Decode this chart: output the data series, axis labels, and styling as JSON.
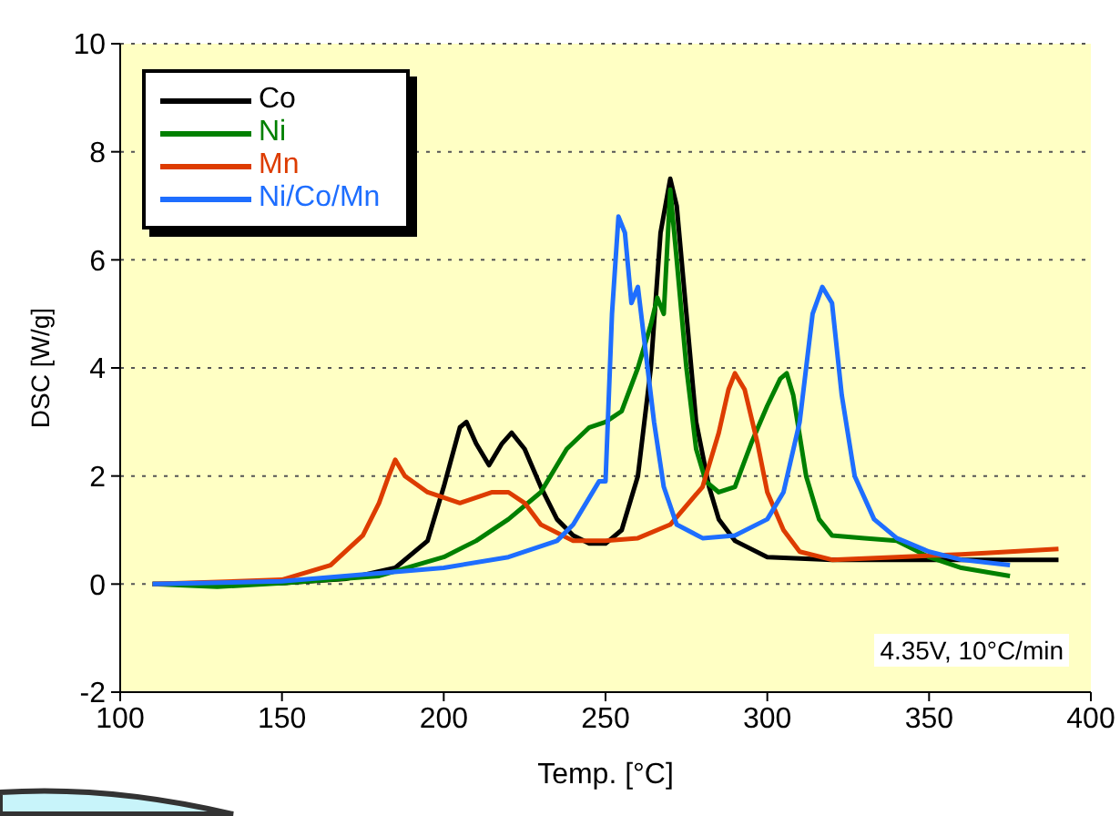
{
  "chart_data": {
    "type": "line",
    "xlabel": "Temp. [°C]",
    "ylabel": "DSC [W/g]",
    "xlim": [
      100,
      400
    ],
    "xticks": [
      100,
      150,
      200,
      250,
      300,
      350,
      400
    ],
    "ylim": [
      -2,
      10
    ],
    "yticks": [
      -2,
      0,
      2,
      4,
      6,
      8,
      10
    ],
    "grid": "y",
    "legend": "top left",
    "marker": "none",
    "line_style": "solid",
    "annotations": [
      "4.35V, 10°C/min"
    ],
    "series": [
      {
        "name": "Co",
        "color": "#000000",
        "x": [
          110,
          150,
          170,
          185,
          195,
          200,
          205,
          207,
          210,
          214,
          218,
          221,
          225,
          230,
          235,
          240,
          245,
          250,
          255,
          260,
          264,
          267,
          270,
          272,
          275,
          278,
          282,
          285,
          290,
          300,
          320,
          350,
          390
        ],
        "values": [
          0,
          0.02,
          0.1,
          0.3,
          0.8,
          1.8,
          2.9,
          3.0,
          2.6,
          2.2,
          2.6,
          2.8,
          2.5,
          1.8,
          1.2,
          0.9,
          0.75,
          0.75,
          1.0,
          2.0,
          4.0,
          6.5,
          7.5,
          7.0,
          5.0,
          3.0,
          1.8,
          1.2,
          0.8,
          0.5,
          0.45,
          0.45,
          0.45
        ]
      },
      {
        "name": "Ni",
        "color": "#008000",
        "x": [
          110,
          130,
          150,
          180,
          200,
          210,
          220,
          230,
          238,
          245,
          250,
          255,
          260,
          264,
          266,
          268,
          270,
          272,
          275,
          278,
          281,
          285,
          290,
          295,
          300,
          304,
          306,
          308,
          312,
          316,
          320,
          330,
          340,
          350,
          360,
          375
        ],
        "values": [
          0,
          -0.05,
          0.02,
          0.15,
          0.5,
          0.8,
          1.2,
          1.7,
          2.5,
          2.9,
          3.0,
          3.2,
          4.0,
          4.8,
          5.3,
          5.0,
          7.3,
          6.0,
          4.0,
          2.5,
          1.9,
          1.7,
          1.8,
          2.6,
          3.3,
          3.8,
          3.9,
          3.5,
          2.0,
          1.2,
          0.9,
          0.85,
          0.8,
          0.5,
          0.3,
          0.15
        ]
      },
      {
        "name": "Mn",
        "color": "#dd3c00",
        "x": [
          110,
          150,
          165,
          175,
          180,
          183,
          185,
          188,
          195,
          205,
          215,
          220,
          225,
          230,
          240,
          250,
          260,
          270,
          280,
          285,
          288,
          290,
          293,
          297,
          300,
          305,
          310,
          320,
          340,
          360,
          375,
          390
        ],
        "values": [
          0,
          0.08,
          0.35,
          0.9,
          1.5,
          2.0,
          2.3,
          2.0,
          1.7,
          1.5,
          1.7,
          1.7,
          1.5,
          1.1,
          0.8,
          0.8,
          0.85,
          1.1,
          1.8,
          2.8,
          3.6,
          3.9,
          3.6,
          2.6,
          1.7,
          1.0,
          0.6,
          0.45,
          0.5,
          0.55,
          0.6,
          0.65
        ]
      },
      {
        "name": "Ni/Co/Mn",
        "color": "#1e6eff",
        "x": [
          110,
          150,
          200,
          220,
          235,
          240,
          245,
          248,
          250,
          252,
          254,
          256,
          258,
          260,
          262,
          265,
          268,
          272,
          280,
          290,
          300,
          305,
          310,
          314,
          317,
          320,
          323,
          327,
          333,
          340,
          350,
          360,
          375
        ],
        "values": [
          0,
          0.05,
          0.3,
          0.5,
          0.8,
          1.1,
          1.6,
          1.9,
          1.9,
          5.0,
          6.8,
          6.5,
          5.2,
          5.5,
          4.5,
          3.0,
          1.8,
          1.1,
          0.85,
          0.9,
          1.2,
          1.7,
          3.0,
          5.0,
          5.5,
          5.2,
          3.5,
          2.0,
          1.2,
          0.85,
          0.6,
          0.45,
          0.35
        ]
      }
    ]
  }
}
